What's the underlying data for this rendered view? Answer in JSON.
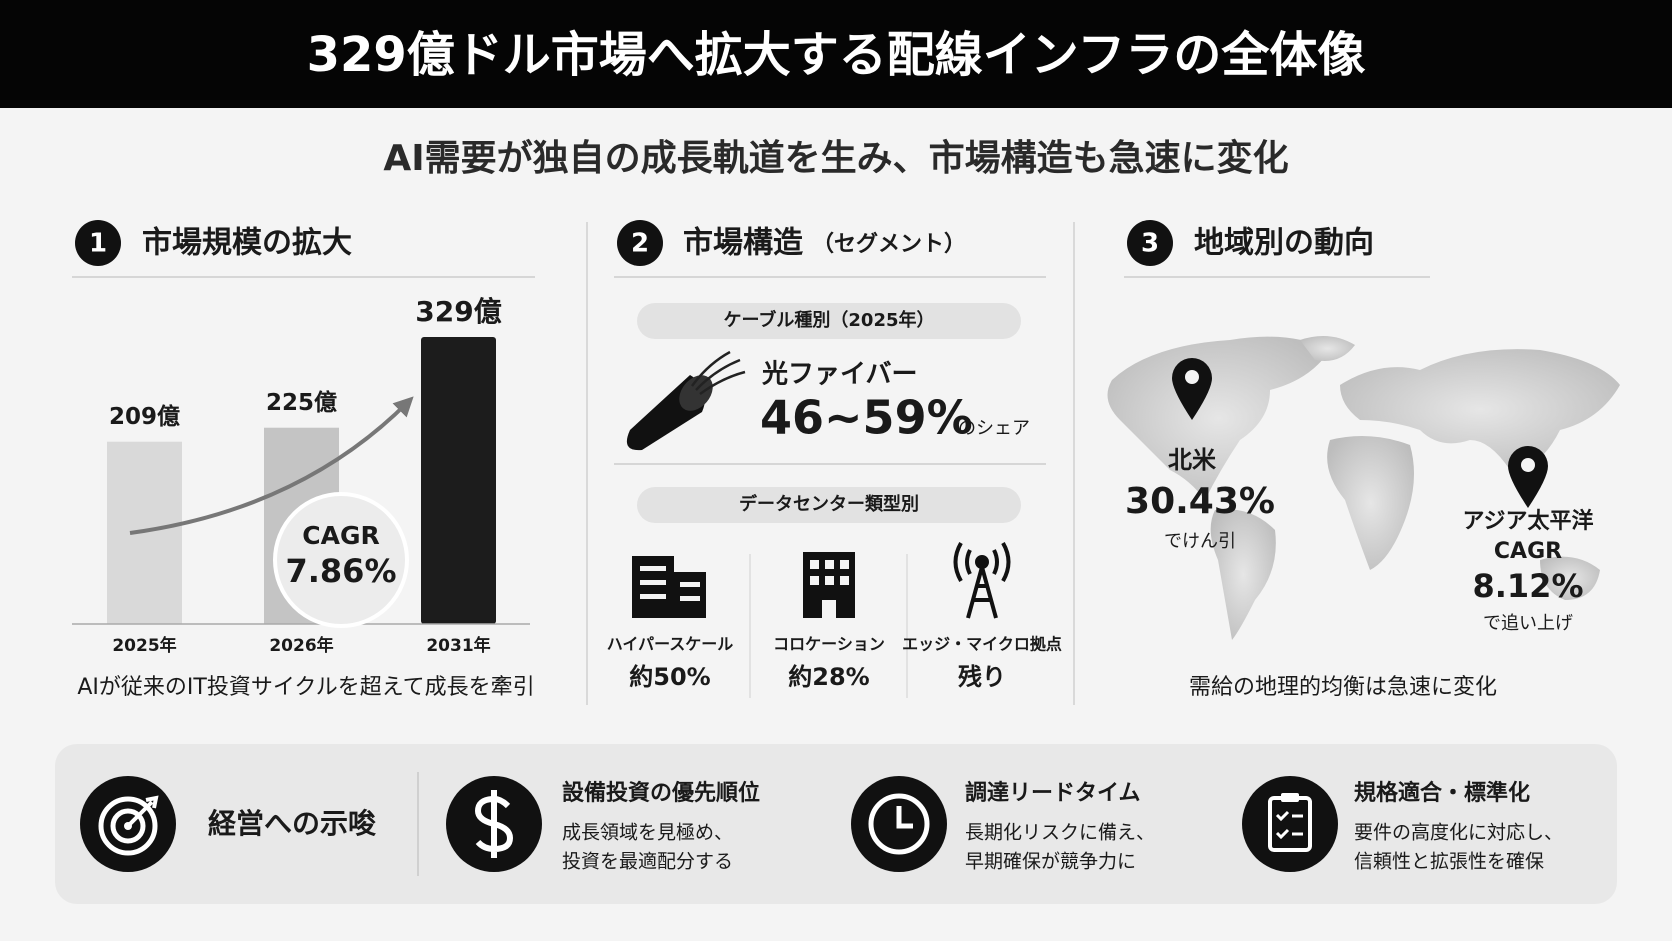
{
  "header": {
    "title": "329億ドル市場へ拡大する配線インフラの全体像"
  },
  "subtitle": "AI需要が独自の成長軌道を生み、市場構造も急速に変化",
  "sections": [
    {
      "number": "1",
      "heading": "市場規模の拡大",
      "chart": {
        "type": "bar",
        "categories": [
          "2025年",
          "2026年",
          "2031年"
        ],
        "values": [
          209,
          225,
          329
        ],
        "value_labels": [
          "209億",
          "225億",
          "329億"
        ],
        "colors": [
          "#d9d9d9",
          "#c4c4c4",
          "#1c1c1c"
        ]
      },
      "cagr": {
        "label": "CAGR",
        "value": "7.86%"
      },
      "caption": "AIが従来のIT投資サイクルを超えて成長を牽引"
    },
    {
      "number": "2",
      "heading": "市場構造",
      "heading_note": "（セグメント）",
      "cable": {
        "pill": "ケーブル種別（2025年）",
        "name": "光ファイバー",
        "share": "46~59%",
        "suffix": "のシェア"
      },
      "datacenter": {
        "pill": "データセンター類型別",
        "types": [
          {
            "label": "ハイパースケール",
            "share": "約50%"
          },
          {
            "label": "コロケーション",
            "share": "約28%"
          },
          {
            "label": "エッジ・マイクロ拠点",
            "share": "残り"
          }
        ]
      }
    },
    {
      "number": "3",
      "heading": "地域別の動向",
      "regions": [
        {
          "name": "北米",
          "value": "30.43%",
          "note": "でけん引"
        },
        {
          "name": "アジア太平洋",
          "metric": "CAGR",
          "value": "8.12%",
          "note": "で追い上げ"
        }
      ],
      "caption": "需給の地理的均衡は急速に変化"
    }
  ],
  "implications": {
    "title": "経営への示唆",
    "items": [
      {
        "title": "設備投資の優先順位",
        "lines": [
          "成長領域を見極め、",
          "投資を最適配分する"
        ]
      },
      {
        "title": "調達リードタイム",
        "lines": [
          "長期化リスクに備え、",
          "早期確保が競争力に"
        ]
      },
      {
        "title": "規格適合・標準化",
        "lines": [
          "要件の高度化に対応し、",
          "信頼性と拡張性を確保"
        ]
      }
    ]
  }
}
